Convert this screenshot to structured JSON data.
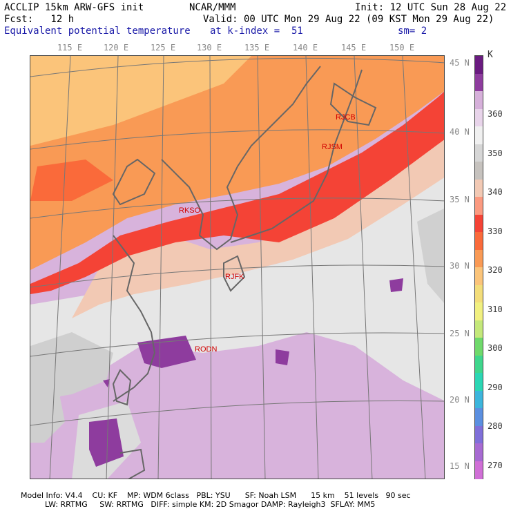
{
  "header": {
    "model_line": "ACCLIP 15km ARW-GFS init",
    "org": "NCAR/MMM",
    "init": "Init: 12 UTC Sun 28 Aug 22",
    "fcst": "Fcst:   12 h",
    "valid": "Valid: 00 UTC Mon 29 Aug 22 (09 KST Mon 29 Aug 22)",
    "field": "Equivalent potential temperature",
    "level": "at k-index =  51",
    "smooth": "sm= 2"
  },
  "longitudes": [
    "115 E",
    "120 E",
    "125 E",
    "130 E",
    "135 E",
    "140 E",
    "145 E",
    "150 E"
  ],
  "latitudes": [
    "45 N",
    "40 N",
    "35 N",
    "30 N",
    "25 N",
    "20 N",
    "15 N"
  ],
  "stations": [
    {
      "id": "RJCB"
    },
    {
      "id": "RJSM"
    },
    {
      "id": "RKSO"
    },
    {
      "id": "RJFK"
    },
    {
      "id": "RODN"
    }
  ],
  "colorbar": {
    "unit": "K",
    "labels": [
      "360",
      "350",
      "340",
      "330",
      "320",
      "310",
      "300",
      "290",
      "280",
      "270"
    ],
    "colors": [
      "#6a1b80",
      "#8e3c9e",
      "#d6b0da",
      "#e8d4ea",
      "#f0f0f0",
      "#d6d6d6",
      "#c6c2be",
      "#f2c9b4",
      "#fb9a80",
      "#f44336",
      "#fa6a3a",
      "#f99a55",
      "#fbc47a",
      "#f3dd7a",
      "#f1f080",
      "#c4e87a",
      "#6fd96b",
      "#3fd68c",
      "#2bd6b4",
      "#3cb5dc",
      "#5b8fe0",
      "#7f6fd9",
      "#a76ad2",
      "#d06fd6"
    ]
  },
  "footer": {
    "line1": "Model Info: V4.4    CU: KF    MP: WDM 6class   PBL: YSU      SF: Noah LSM      15 km    51 levels   90 sec",
    "line2": "          LW: RRTMG     SW: RRTMG   DIFF: simple KM: 2D Smagor DAMP: Rayleigh3  SFLAY: MM5"
  }
}
